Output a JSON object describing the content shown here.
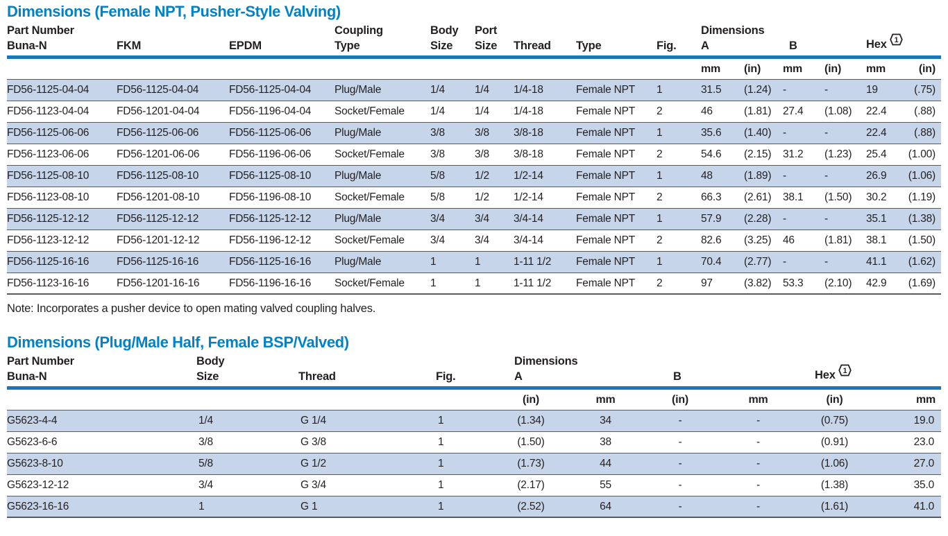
{
  "colors": {
    "title_blue": "#0082C9",
    "header_rule_blue": "#1B75BC",
    "row_highlight_blue": "#C6D5E9",
    "row_separator_gray": "#58595B",
    "text": "#231F20"
  },
  "table1": {
    "title": "Dimensions (Female NPT, Pusher-Style Valving)",
    "header": {
      "part_number": "Part Number",
      "buna": "Buna-N",
      "fkm": "FKM",
      "epdm": "EPDM",
      "coupling_line1": "Coupling",
      "coupling_line2": "Type",
      "body_line1": "Body",
      "body_line2": "Size",
      "port_line1": "Port",
      "port_line2": "Size",
      "thread": "Thread",
      "type": "Type",
      "fig": "Fig.",
      "dimensions": "Dimensions",
      "a": "A",
      "b": "B",
      "hex": "Hex",
      "hex_badge": "1"
    },
    "units": [
      "mm",
      "(in)",
      "mm",
      "(in)",
      "mm",
      "(in)"
    ],
    "rows": [
      [
        "FD56-1125-04-04",
        "FD56-1125-04-04",
        "FD56-1125-04-04",
        "Plug/Male",
        "1/4",
        "1/4",
        "1/4-18",
        "Female NPT",
        "1",
        "31.5",
        "(1.24)",
        "-",
        "-",
        "19",
        "(.75)"
      ],
      [
        "FD56-1123-04-04",
        "FD56-1201-04-04",
        "FD56-1196-04-04",
        "Socket/Female",
        "1/4",
        "1/4",
        "1/4-18",
        "Female NPT",
        "2",
        "46",
        "(1.81)",
        "27.4",
        "(1.08)",
        "22.4",
        "(.88)"
      ],
      [
        "FD56-1125-06-06",
        "FD56-1125-06-06",
        "FD56-1125-06-06",
        "Plug/Male",
        "3/8",
        "3/8",
        "3/8-18",
        "Female NPT",
        "1",
        "35.6",
        "(1.40)",
        "-",
        "-",
        "22.4",
        "(.88)"
      ],
      [
        "FD56-1123-06-06",
        "FD56-1201-06-06",
        "FD56-1196-06-06",
        "Socket/Female",
        "3/8",
        "3/8",
        "3/8-18",
        "Female NPT",
        "2",
        "54.6",
        "(2.15)",
        "31.2",
        "(1.23)",
        "25.4",
        "(1.00)"
      ],
      [
        "FD56-1125-08-10",
        "FD56-1125-08-10",
        "FD56-1125-08-10",
        "Plug/Male",
        "5/8",
        "1/2",
        "1/2-14",
        "Female NPT",
        "1",
        "48",
        "(1.89)",
        "-",
        "-",
        "26.9",
        "(1.06)"
      ],
      [
        "FD56-1123-08-10",
        "FD56-1201-08-10",
        "FD56-1196-08-10",
        "Socket/Female",
        "5/8",
        "1/2",
        "1/2-14",
        "Female NPT",
        "2",
        "66.3",
        "(2.61)",
        "38.1",
        "(1.50)",
        "30.2",
        "(1.19)"
      ],
      [
        "FD56-1125-12-12",
        "FD56-1125-12-12",
        "FD56-1125-12-12",
        "Plug/Male",
        "3/4",
        "3/4",
        "3/4-14",
        "Female NPT",
        "1",
        "57.9",
        "(2.28)",
        "-",
        "-",
        "35.1",
        "(1.38)"
      ],
      [
        "FD56-1123-12-12",
        "FD56-1201-12-12",
        "FD56-1196-12-12",
        "Socket/Female",
        "3/4",
        "3/4",
        "3/4-14",
        "Female NPT",
        "2",
        "82.6",
        "(3.25)",
        "46",
        "(1.81)",
        "38.1",
        "(1.50)"
      ],
      [
        "FD56-1125-16-16",
        "FD56-1125-16-16",
        "FD56-1125-16-16",
        "Plug/Male",
        "1",
        "1",
        "1-11 1/2",
        "Female NPT",
        "1",
        "70.4",
        "(2.77)",
        "-",
        "-",
        "41.1",
        "(1.62)"
      ],
      [
        "FD56-1123-16-16",
        "FD56-1201-16-16",
        "FD56-1196-16-16",
        "Socket/Female",
        "1",
        "1",
        "1-11 1/2",
        "Female NPT",
        "2",
        "97",
        "(3.82)",
        "53.3",
        "(2.10)",
        "42.9",
        "(1.69)"
      ]
    ],
    "note": "Note: Incorporates a pusher device to open mating valved coupling halves."
  },
  "table2": {
    "title": "Dimensions (Plug/Male Half, Female BSP/Valved)",
    "header": {
      "part_number": "Part Number",
      "buna": "Buna-N",
      "body_line1": "Body",
      "body_line2": "Size",
      "thread": "Thread",
      "fig": "Fig.",
      "dimensions": "Dimensions",
      "a": "A",
      "b": "B",
      "hex": "Hex",
      "hex_badge": "1"
    },
    "units": [
      "(in)",
      "mm",
      "(in)",
      "mm",
      "(in)",
      "mm"
    ],
    "rows": [
      [
        "G5623-4-4",
        "1/4",
        "G 1/4",
        "1",
        "(1.34)",
        "34",
        "-",
        "-",
        "(0.75)",
        "19.0"
      ],
      [
        "G5623-6-6",
        "3/8",
        "G 3/8",
        "1",
        "(1.50)",
        "38",
        "-",
        "-",
        "(0.91)",
        "23.0"
      ],
      [
        "G5623-8-10",
        "5/8",
        "G 1/2",
        "1",
        "(1.73)",
        "44",
        "-",
        "-",
        "(1.06)",
        "27.0"
      ],
      [
        "G5623-12-12",
        "3/4",
        "G 3/4",
        "1",
        "(2.17)",
        "55",
        "-",
        "-",
        "(1.38)",
        "35.0"
      ],
      [
        "G5623-16-16",
        "1",
        "G 1",
        "1",
        "(2.52)",
        "64",
        "-",
        "-",
        "(1.61)",
        "41.0"
      ]
    ]
  }
}
